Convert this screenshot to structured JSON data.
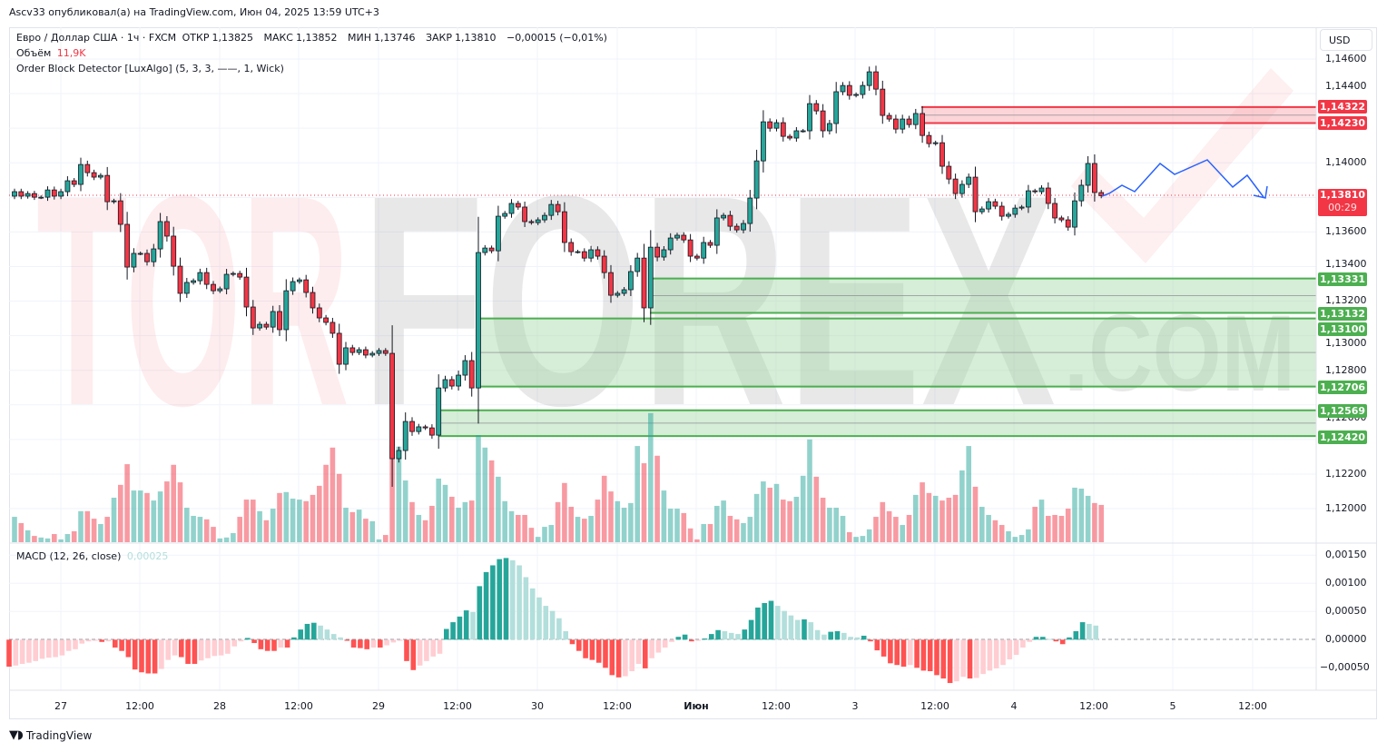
{
  "published": "Ascv33 опубликовал(а) на TradingView.com, Июн 04, 2025 13:59 UTC+3",
  "legend": {
    "symbol": "Евро / Доллар США · 1ч · FXCM",
    "open_label": "ОТКР",
    "open": "1,13825",
    "high_label": "МАКС",
    "high": "1,13852",
    "low_label": "МИН",
    "low": "1,13746",
    "close_label": "ЗАКР",
    "close": "1,13810",
    "change": "−0,00015 (−0,01%)",
    "volume_label": "Объём",
    "volume": "11,9K",
    "indicator": "Order Block Detector [LuxAlgo] (5, 3, 3, ——, 1, Wick)",
    "macd_label": "MACD (12, 26, close)",
    "macd_value": "0,00025"
  },
  "currency_button": "USD",
  "current_price": {
    "value": "1,13810",
    "countdown": "00:29"
  },
  "order_blocks": {
    "bearish": [
      {
        "top": 1.14322,
        "bottom": 1.1423,
        "top_label": "1,14322",
        "bottom_label": "1,14230"
      }
    ],
    "bullish": [
      {
        "top": 1.13331,
        "bottom": 1.13132,
        "top_label": "1,13331",
        "bottom_label": "1,13132"
      },
      {
        "top": 1.131,
        "bottom": 1.12706,
        "top_label": "1,13100",
        "bottom_label": "1,12706"
      },
      {
        "top": 1.12569,
        "bottom": 1.1242,
        "top_label": "1,12569",
        "bottom_label": "1,12420"
      }
    ]
  },
  "price_ticks": [
    "1,14600",
    "1,14400",
    "1,14000",
    "1,13600",
    "1,13400",
    "1,13200",
    "1,13000",
    "1,12800",
    "1,12600",
    "1,12200",
    "1,12000"
  ],
  "macd_ticks": [
    "0,00150",
    "0,00100",
    "0,00050",
    "0,00000",
    "−0,00050"
  ],
  "time_ticks": [
    "27",
    "12:00",
    "28",
    "12:00",
    "29",
    "12:00",
    "30",
    "12:00",
    "Июн",
    "12:00",
    "3",
    "12:00",
    "4",
    "12:00",
    "5",
    "12:00"
  ],
  "watermark": "TORFOREX.COM",
  "footer_brand": "TradingView",
  "colors": {
    "up": "#26a69a",
    "down": "#f23645",
    "bull_zone": "#4caf50",
    "bear_zone": "#f23645",
    "forecast": "#2962ff"
  },
  "chart_data": [
    {
      "type": "candlestick",
      "timeframe": "1h",
      "first_open": 1.13807,
      "close": [
        1.13833,
        1.13807,
        1.13822,
        1.13801,
        1.13801,
        1.13843,
        1.13807,
        1.13833,
        1.13896,
        1.13875,
        1.1399,
        1.13943,
        1.13917,
        1.13927,
        1.13775,
        1.1378,
        1.13644,
        1.13397,
        1.13476,
        1.13476,
        1.13428,
        1.13502,
        1.1366,
        1.13576,
        1.13402,
        1.13245,
        1.13308,
        1.13318,
        1.13365,
        1.13297,
        1.1326,
        1.13271,
        1.13355,
        1.1336,
        1.13339,
        1.13166,
        1.13045,
        1.13066,
        1.1305,
        1.1314,
        1.13035,
        1.1326,
        1.13313,
        1.13323,
        1.1325,
        1.13161,
        1.13103,
        1.13077,
        1.13014,
        1.12835,
        1.1293,
        1.12903,
        1.12919,
        1.12888,
        1.12898,
        1.12914,
        1.12898,
        1.12289,
        1.12336,
        1.12504,
        1.12446,
        1.12473,
        1.12467,
        1.12425,
        1.12698,
        1.12746,
        1.12709,
        1.12772,
        1.12856,
        1.12698,
        1.13481,
        1.13507,
        1.13491,
        1.13691,
        1.13707,
        1.13765,
        1.13744,
        1.1366,
        1.13654,
        1.1367,
        1.13696,
        1.13759,
        1.13717,
        1.13539,
        1.13486,
        1.13486,
        1.13449,
        1.13497,
        1.1346,
        1.13365,
        1.13234,
        1.13245,
        1.13266,
        1.13371,
        1.13449,
        1.13161,
        1.13512,
        1.13455,
        1.13497,
        1.13565,
        1.13581,
        1.13554,
        1.1346,
        1.13449,
        1.13539,
        1.13523,
        1.13681,
        1.13696,
        1.13633,
        1.13612,
        1.13649,
        1.13796,
        1.14011,
        1.14237,
        1.142,
        1.14232,
        1.14153,
        1.14143,
        1.14185,
        1.14185,
        1.14342,
        1.143,
        1.14185,
        1.14227,
        1.14411,
        1.14447,
        1.1439,
        1.14395,
        1.14447,
        1.14526,
        1.14426,
        1.14274,
        1.14253,
        1.14195,
        1.14253,
        1.14221,
        1.14285,
        1.14158,
        1.14111,
        1.14116,
        1.1398,
        1.13906,
        1.13822,
        1.13875,
        1.13917,
        1.13717,
        1.13733,
        1.13775,
        1.13749,
        1.13691,
        1.13702,
        1.13738,
        1.13744,
        1.13838,
        1.13833,
        1.13854,
        1.13765,
        1.13681,
        1.1367,
        1.13628,
        1.1378,
        1.1387,
        1.13996,
        1.13828,
        1.1381
      ],
      "ylim": [
        1.1196,
        1.1466
      ]
    },
    {
      "type": "bar",
      "name": "Объём",
      "unit": "K",
      "values": [
        8.1,
        6.1,
        3.8,
        2.0,
        1.5,
        1.2,
        2.6,
        0.9,
        2.6,
        3.5,
        9.9,
        9.9,
        7.5,
        5.8,
        8.1,
        14.2,
        18.3,
        24.9,
        16.5,
        16.5,
        15.7,
        13.3,
        16.2,
        19.4,
        24.7,
        19.1,
        11.0,
        8.4,
        8.1,
        7.3,
        4.9,
        1.2,
        1.5,
        2.9,
        8.1,
        13.6,
        13.6,
        9.9,
        7.0,
        10.7,
        15.7,
        16.0,
        13.9,
        13.6,
        13.1,
        15.1,
        18.0,
        24.7,
        30.2,
        21.8,
        11.0,
        9.6,
        10.4,
        7.5,
        6.7,
        0.9,
        2.3,
        31.0,
        30.5,
        19.7,
        12.8,
        8.7,
        7.0,
        11.6,
        20.3,
        18.3,
        14.5,
        11.0,
        12.8,
        13.3,
        34.2,
        30.2,
        26.1,
        20.9,
        13.1,
        9.9,
        8.7,
        8.7,
        4.6,
        1.7,
        4.9,
        5.5,
        12.8,
        18.9,
        11.3,
        8.1,
        7.5,
        8.4,
        13.6,
        21.2,
        16.2,
        13.1,
        11.0,
        12.5,
        30.7,
        25.2,
        41.2,
        27.6,
        16.5,
        10.7,
        10.7,
        9.3,
        4.4,
        0.9,
        5.8,
        5.8,
        11.6,
        13.3,
        8.4,
        7.3,
        6.1,
        8.1,
        15.4,
        19.4,
        17.4,
        18.6,
        13.6,
        13.1,
        14.5,
        21.2,
        32.8,
        20.9,
        14.2,
        11.0,
        11.0,
        8.4,
        3.2,
        1.7,
        2.0,
        4.1,
        8.1,
        12.8,
        9.9,
        8.1,
        5.5,
        8.7,
        15.1,
        19.1,
        15.7,
        14.8,
        13.3,
        14.2,
        15.1,
        22.9,
        30.7,
        17.7,
        11.3,
        8.7,
        7.0,
        5.5,
        3.5,
        1.7,
        2.3,
        4.1,
        11.3,
        13.6,
        8.4,
        8.7,
        8.4,
        10.7,
        17.4,
        17.1,
        14.8,
        12.5,
        11.9
      ]
    },
    {
      "type": "bar",
      "name": "MACD (12, 26, close)",
      "histogram": [
        -0.00048,
        -0.00046,
        -0.00043,
        -0.00041,
        -0.00038,
        -0.00034,
        -0.00032,
        -0.00031,
        -0.00028,
        -0.0002,
        -0.00017,
        -7e-05,
        -3e-05,
        -2e-05,
        -4e-05,
        -3e-05,
        -0.00014,
        -0.0002,
        -0.00031,
        -0.00053,
        -0.00058,
        -0.0006,
        -0.0006,
        -0.00052,
        -0.00036,
        -0.00028,
        -0.00031,
        -0.00043,
        -0.00043,
        -0.00037,
        -0.00033,
        -0.00029,
        -0.00028,
        -0.00025,
        -0.00012,
        -3e-05,
        3e-05,
        -6e-05,
        -0.00017,
        -0.0002,
        -0.0002,
        -0.00014,
        -0.00014,
        4e-05,
        0.00018,
        0.00028,
        0.0003,
        0.00025,
        0.00018,
        0.0001,
        4e-05,
        -2e-05,
        -0.00014,
        -0.00015,
        -0.00017,
        -0.00014,
        -0.00014,
        -0.0001,
        -5e-05,
        -2e-05,
        -0.00038,
        -0.00054,
        -0.00046,
        -0.00038,
        -0.0003,
        -0.00025,
        0.00019,
        0.00031,
        0.00041,
        0.00052,
        0.00049,
        0.00095,
        0.0012,
        0.00132,
        0.00143,
        0.00145,
        0.00141,
        0.00132,
        0.00111,
        0.00091,
        0.00075,
        0.0006,
        0.00051,
        0.00038,
        0.00015,
        -8e-05,
        -0.0002,
        -0.00033,
        -0.00036,
        -0.00041,
        -0.0005,
        -0.00063,
        -0.00067,
        -0.00065,
        -0.00056,
        -0.00043,
        -0.00051,
        -0.00033,
        -0.00023,
        -0.00014,
        -4e-05,
        5e-05,
        9e-05,
        -3e-05,
        -2e-05,
        2e-05,
        0.0001,
        0.00017,
        0.00015,
        0.00012,
        0.0001,
        0.00018,
        0.00035,
        0.00057,
        0.00065,
        0.00069,
        0.0006,
        0.00051,
        0.00043,
        0.00035,
        0.00036,
        0.00031,
        0.00017,
        9e-05,
        0.00014,
        0.00015,
        0.00012,
        5e-05,
        4e-05,
        7e-05,
        -3e-05,
        -0.00019,
        -0.0003,
        -0.00042,
        -0.00045,
        -0.00048,
        -0.00045,
        -0.0005,
        -0.00055,
        -0.00056,
        -0.00063,
        -0.00069,
        -0.00077,
        -0.00074,
        -0.00066,
        -0.00069,
        -0.00068,
        -0.00061,
        -0.00055,
        -0.00051,
        -0.00045,
        -0.00035,
        -0.00027,
        -0.00014,
        -4e-05,
        5e-05,
        5e-05,
        1e-05,
        -3e-05,
        -8e-05,
        4e-05,
        0.00015,
        0.00031,
        0.00028,
        0.00025
      ],
      "ylim": [
        -0.0009,
        0.0017
      ]
    }
  ]
}
